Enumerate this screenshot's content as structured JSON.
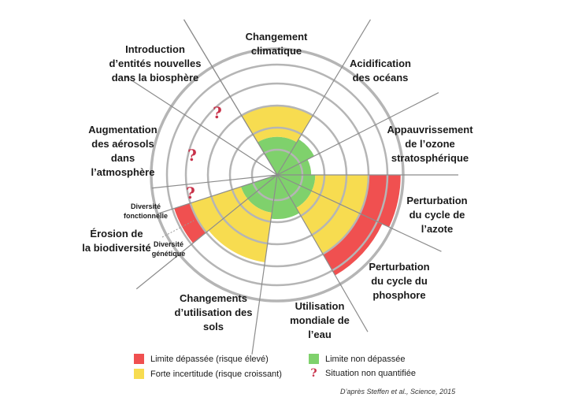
{
  "colors": {
    "red": "#f05050",
    "yellow": "#f7dc50",
    "green": "#7fd16c",
    "ring": "#b5b5b5",
    "spoke": "#8c8c8c",
    "qmark": "#c8324a"
  },
  "boundaries": [
    {
      "id": "climat",
      "label": "Changement\nclimatique",
      "status": "yellow",
      "level": 0.55
    },
    {
      "id": "ocean",
      "label": "Acidification\ndes océans",
      "status": "green",
      "level": 0.33
    },
    {
      "id": "ozone",
      "label": "Appauvrissement\nde l’ozone\nstratosphérique",
      "status": "green",
      "level": 0.27
    },
    {
      "id": "azote",
      "label": "Perturbation\ndu cycle de\nl’azote",
      "status": "red",
      "level": 0.98
    },
    {
      "id": "phosphore",
      "label": "Perturbation\ndu cycle du\nphosphore",
      "status": "red",
      "level": 0.92
    },
    {
      "id": "eau",
      "label": "Utilisation\nmondiale de\nl’eau",
      "status": "green",
      "level": 0.35
    },
    {
      "id": "sols",
      "label": "Changements\nd’utilisation des\nsols",
      "status": "yellow",
      "level": 0.7
    },
    {
      "id": "biodiv_genetique",
      "label": "Diversité\ngénétique",
      "status": "red",
      "level": 0.86
    },
    {
      "id": "biodiv_fonctionnelle",
      "label": "Diversité\nfonctionnelle",
      "status": "unknown"
    },
    {
      "id": "aerosols",
      "label": "Augmentation\ndes aérosols\ndans\nl’atmosphère",
      "status": "unknown"
    },
    {
      "id": "entites",
      "label": "Introduction\nd’entités nouvelles\ndans la biosphère",
      "status": "unknown"
    }
  ],
  "biodiversity_label": "Érosion de\nla biodiversité",
  "legend": [
    {
      "id": "red",
      "label": "Limite dépassée (risque élevé)"
    },
    {
      "id": "yellow",
      "label": "Forte incertitude (risque croissant)"
    },
    {
      "id": "green",
      "label": "Limite non dépassée"
    },
    {
      "id": "unknown",
      "label": "Situation non quantifiée",
      "icon": "question-mark-icon"
    }
  ],
  "qmark_symbol": "?",
  "source": "D’après Steffen et al., Science, 2015"
}
